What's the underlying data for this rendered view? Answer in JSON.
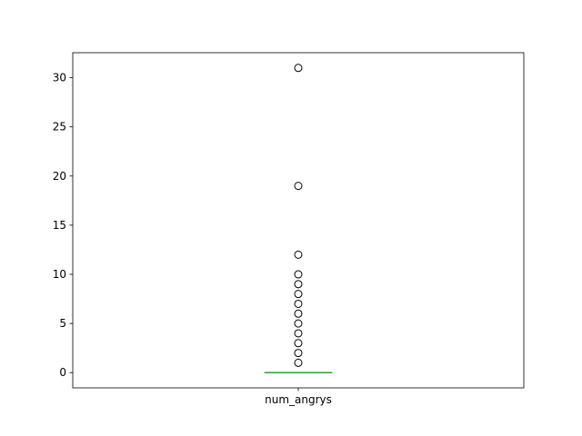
{
  "chart_data": {
    "type": "box",
    "title": "",
    "xlabel": "",
    "ylabel": "",
    "categories": [
      "num_angrys"
    ],
    "ylim": [
      -1.55,
      32.55
    ],
    "yticks": [
      0,
      5,
      10,
      15,
      20,
      25,
      30
    ],
    "ytick_labels": [
      "0",
      "5",
      "10",
      "15",
      "20",
      "25",
      "30"
    ],
    "grid": false,
    "box": {
      "q1": 0,
      "median": 0,
      "q3": 0,
      "whisker_low": 0,
      "whisker_high": 0
    },
    "fliers": [
      1,
      2,
      3,
      4,
      5,
      6,
      7,
      8,
      9,
      10,
      12,
      19,
      31
    ],
    "colors": {
      "box": "#1f77b4",
      "median": "#2ca02c",
      "flier_edge": "#000000"
    }
  }
}
